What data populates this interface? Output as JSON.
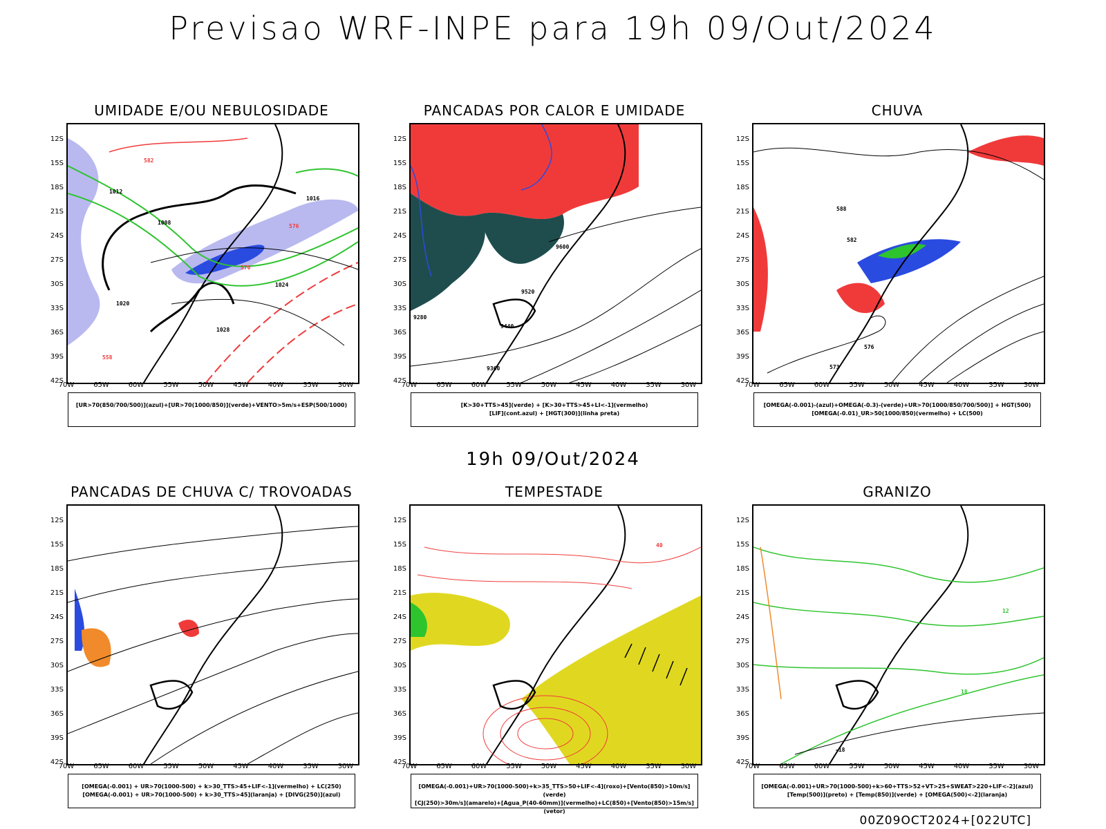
{
  "header": {
    "title": "Previsao WRF-INPE  para 19h 09/Out/2024",
    "subtitle": "19h 09/Out/2024",
    "footer": "00Z09OCT2024+[022UTC]"
  },
  "axes": {
    "lat_labels": [
      "12S",
      "15S",
      "18S",
      "21S",
      "24S",
      "27S",
      "30S",
      "33S",
      "36S",
      "39S",
      "42S"
    ],
    "lon_labels": [
      "70W",
      "65W",
      "60W",
      "55W",
      "50W",
      "45W",
      "40W",
      "35W",
      "30W"
    ]
  },
  "colors": {
    "red": "#f03a3a",
    "green": "#2ec42e",
    "blue": "#2a4be0",
    "lavender": "#b9b9f0",
    "dark_teal": "#1f4d4d",
    "orange": "#f08a2a",
    "yellow": "#e0d820"
  },
  "panels": [
    {
      "id": "umidade",
      "title": "UMIDADE E/OU NEBULOSIDADE",
      "legend": [
        "[UR>70(850/700/500)](azul)+[UR>70(1000/850)](verde)+VENTO>5m/s+ESP(500/1000)"
      ],
      "labels": [
        "1008",
        "1012",
        "1016",
        "1020",
        "1024",
        "1028",
        "570",
        "576",
        "582",
        "558"
      ]
    },
    {
      "id": "pancadas_calor",
      "title": "PANCADAS POR CALOR E UMIDADE",
      "legend": [
        "[K>30+TTS>45](verde) + [K>30+TTS>45+LI<-1](vermelho)",
        "[LIF](cont.azul) + [HGT(300)](linha preta)"
      ],
      "labels": [
        "9600",
        "9520",
        "9440",
        "9360",
        "9280"
      ]
    },
    {
      "id": "chuva",
      "title": "CHUVA",
      "legend": [
        "[OMEGA(-0.001)-(azul)+OMEGA(-0.3)-(verde)+UR>70(1000/850/700/500)] + HGT(500)",
        "[OMEGA(-0.01)_UR>50(1000/850)(vermelho) + LC(500)"
      ],
      "labels": [
        "588",
        "582",
        "576",
        "573"
      ]
    },
    {
      "id": "trovoadas",
      "title": "PANCADAS DE CHUVA C/ TROVOADAS",
      "legend": [
        "[OMEGA(-0.001) + UR>70(1000-500) + k>30_TTS>45+LIF<-1](vermelho) + LC(250)",
        "[OMEGA(-0.001) + UR>70(1000-500) + k>30_TTS>45](laranja) + [DIVG(250)](azul)"
      ],
      "labels": []
    },
    {
      "id": "tempestade",
      "title": "TEMPESTADE",
      "legend": [
        "[OMEGA(-0.001)+UR>70(1000-500)+k>35_TTS>50+LIF<-4](roxo)+[Vento(850)>10m/s](verde)",
        "[CJ(250)>30m/s](amarelo)+[Agua_P(40-60mm)](vermelho)+LC(850)+[Vento(850)>15m/s](vetor)"
      ],
      "labels": [
        "40"
      ]
    },
    {
      "id": "granizo",
      "title": "GRANIZO",
      "legend": [
        "[OMEGA(-0.001)+UR>70(1000-500)+k>60+TTS>52+VT>25+SWEAT>220+LIF<-2](azul)",
        "[Temp(500)](preto) + [Temp(850)](verde) + [OMEGA(500)<-2](laranja)"
      ],
      "labels": [
        "12",
        "18",
        "-18"
      ]
    }
  ]
}
